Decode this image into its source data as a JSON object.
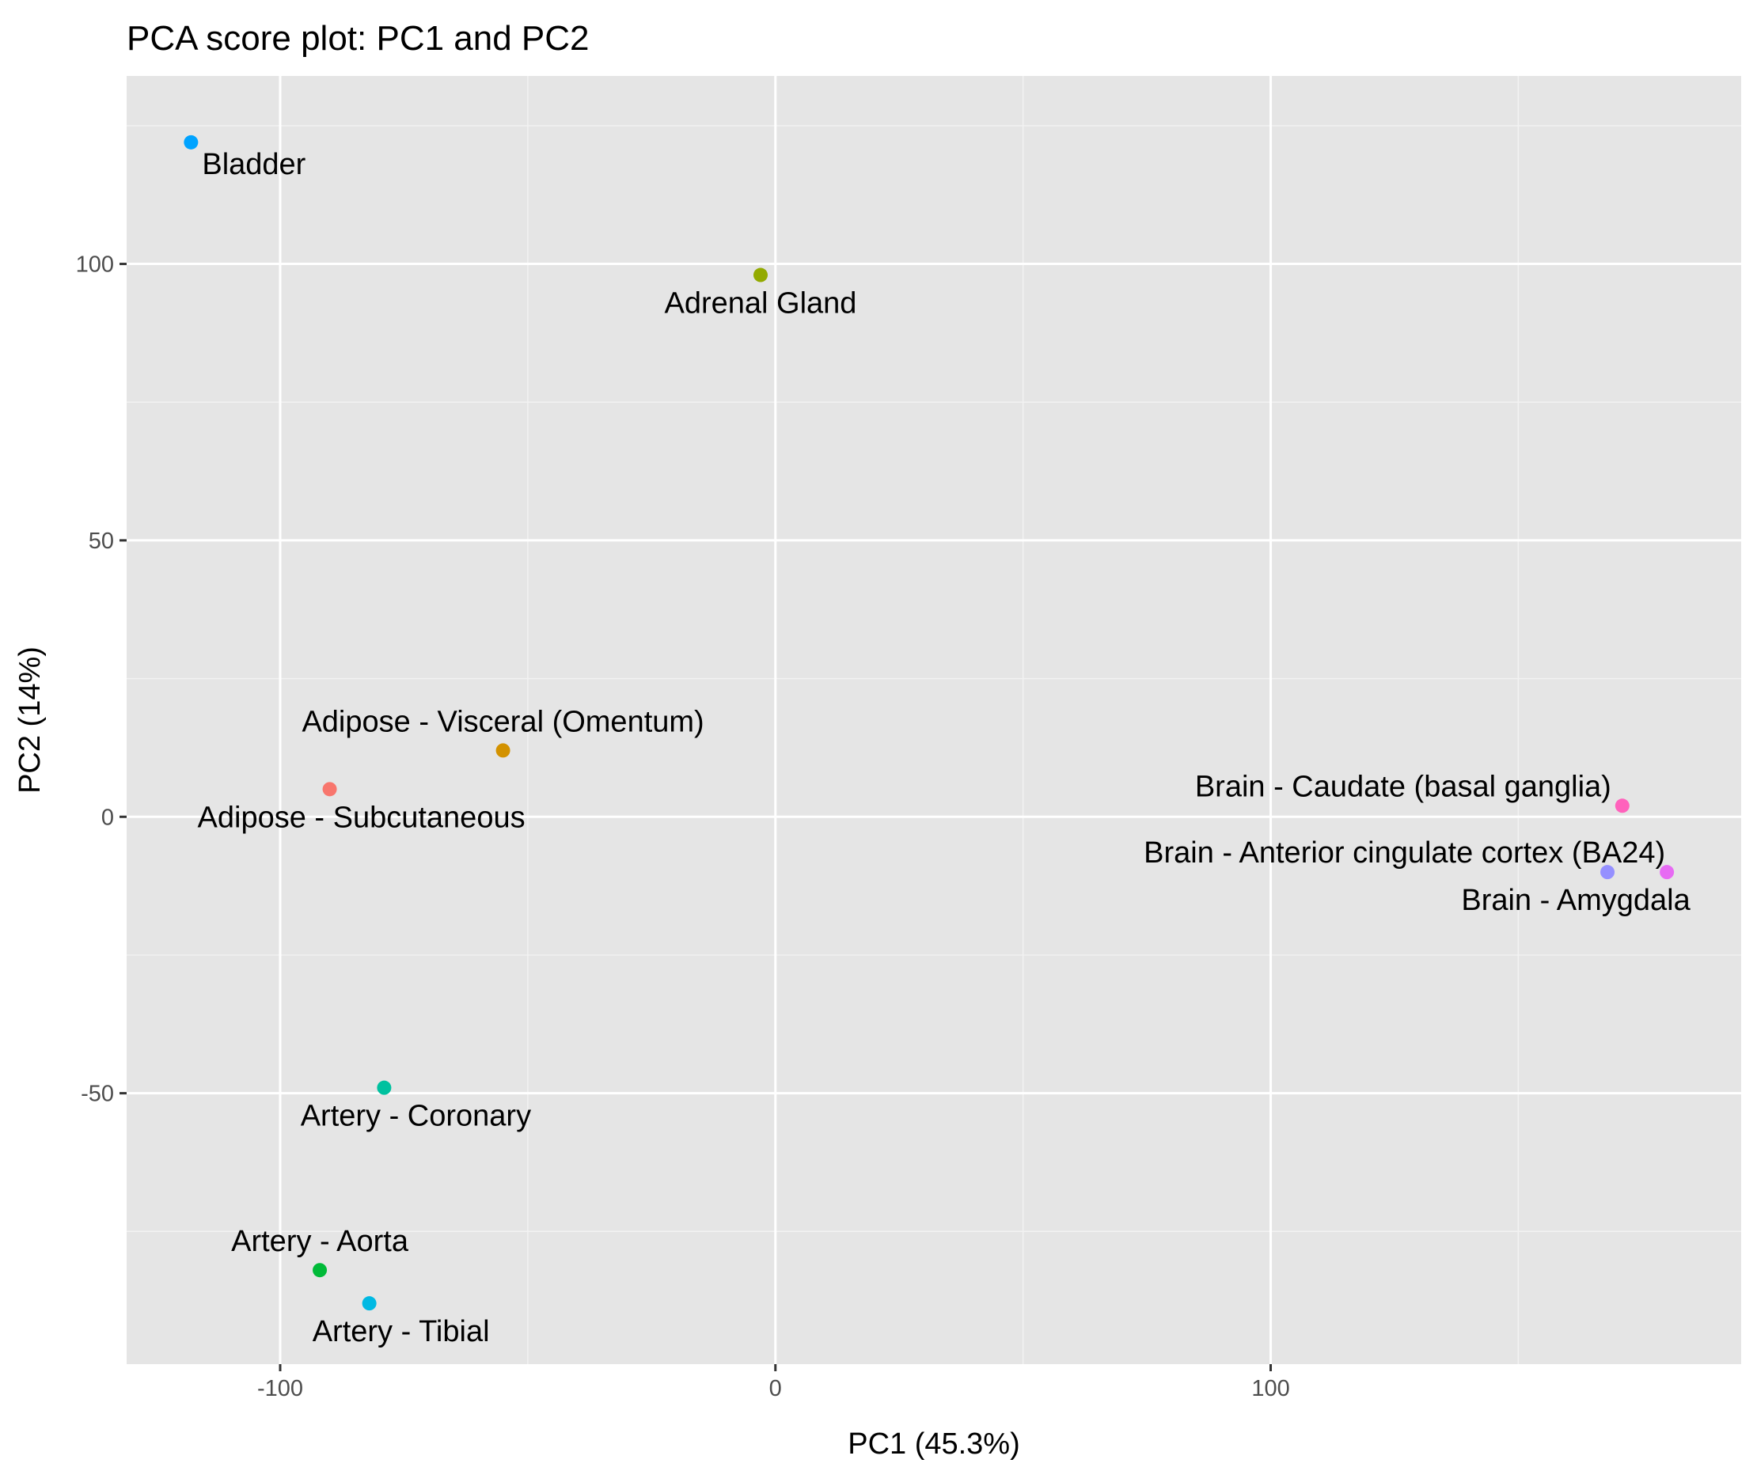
{
  "chart_data": {
    "type": "scatter",
    "title": "PCA score plot: PC1 and PC2",
    "xlabel": "PC1 (45.3%)",
    "ylabel": "PC2 (14%)",
    "xlim": [
      -131,
      195
    ],
    "ylim": [
      -99,
      134
    ],
    "x_ticks": [
      {
        "value": -100,
        "label": "-100"
      },
      {
        "value": 0,
        "label": "0"
      },
      {
        "value": 100,
        "label": "100"
      }
    ],
    "y_ticks": [
      {
        "value": -50,
        "label": "-50"
      },
      {
        "value": 0,
        "label": "0"
      },
      {
        "value": 50,
        "label": "50"
      },
      {
        "value": 100,
        "label": "100"
      }
    ],
    "x_minor_ticks": [
      -50,
      50,
      150
    ],
    "y_minor_ticks": [
      -75,
      -25,
      25,
      75,
      125
    ],
    "grid": true,
    "background": "#e5e5e5",
    "points": [
      {
        "label": "Adipose - Subcutaneous",
        "x": -90,
        "y": 5,
        "color": "#F8766D",
        "label_pos": "below-left"
      },
      {
        "label": "Adipose - Visceral (Omentum)",
        "x": -55,
        "y": 12,
        "color": "#D39200",
        "label_pos": "above-left"
      },
      {
        "label": "Adrenal Gland",
        "x": -3,
        "y": 98,
        "color": "#93AA00",
        "label_pos": "below-center"
      },
      {
        "label": "Artery - Aorta",
        "x": -92,
        "y": -82,
        "color": "#00BA38",
        "label_pos": "above-left"
      },
      {
        "label": "Artery - Coronary",
        "x": -79,
        "y": -49,
        "color": "#00C19F",
        "label_pos": "below-left"
      },
      {
        "label": "Artery - Tibial",
        "x": -82,
        "y": -88,
        "color": "#00B9E3",
        "label_pos": "below-right"
      },
      {
        "label": "Bladder",
        "x": -118,
        "y": 122,
        "color": "#00A3FF",
        "label_pos": "below-right"
      },
      {
        "label": "Brain - Amygdala",
        "x": 168,
        "y": -10,
        "color": "#9590FF",
        "label_pos": "below-right"
      },
      {
        "label": "Brain - Anterior cingulate cortex (BA24)",
        "x": 180,
        "y": -10,
        "color": "#E76BF3",
        "label_pos": "above-left"
      },
      {
        "label": "Brain - Caudate (basal ganglia)",
        "x": 171,
        "y": 2,
        "color": "#FF62BC",
        "label_pos": "above-left"
      }
    ]
  }
}
